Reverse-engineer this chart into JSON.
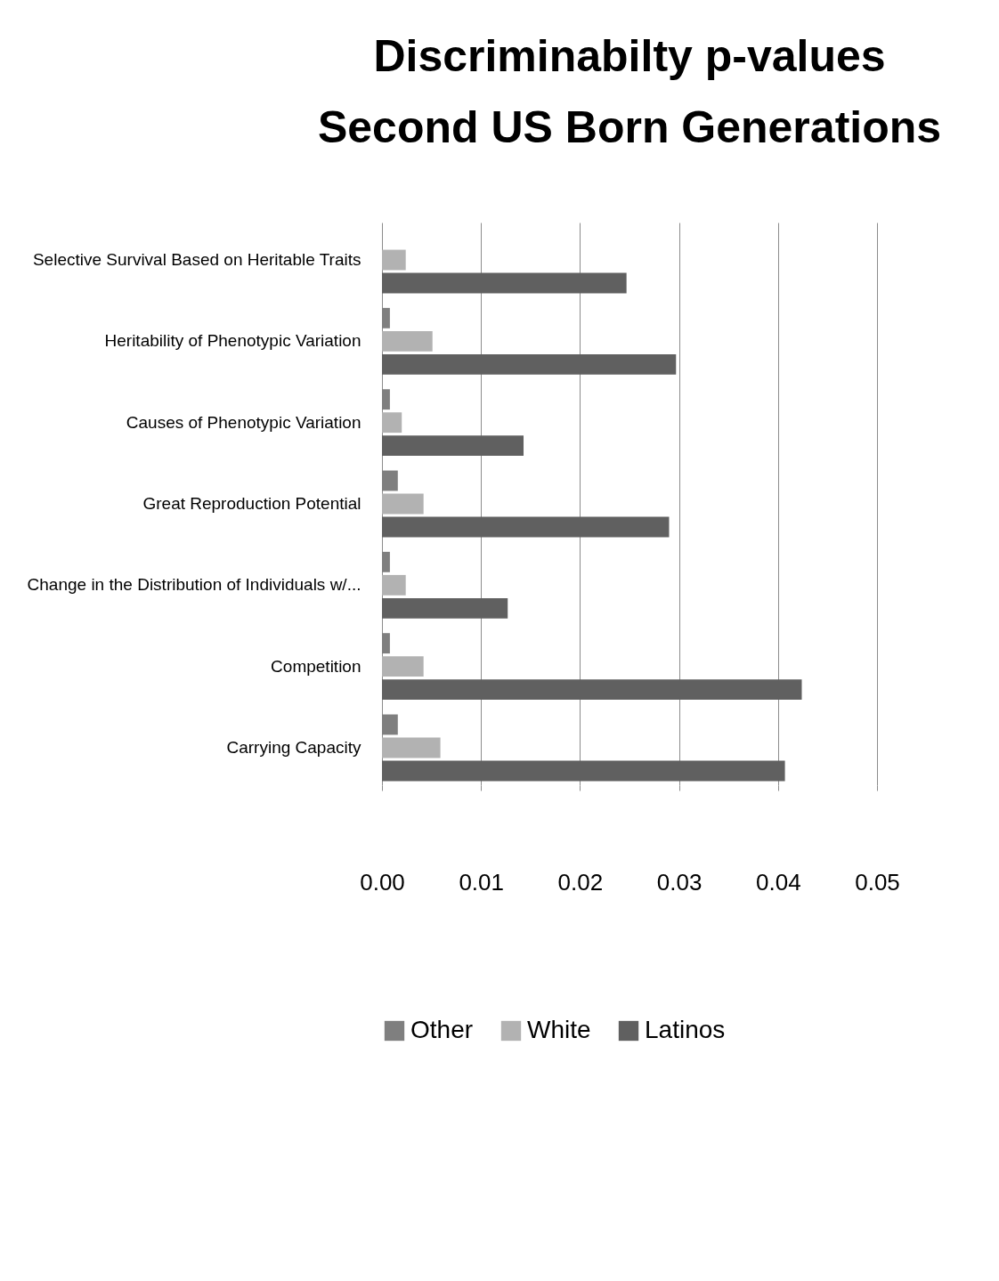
{
  "chart_data": {
    "type": "bar",
    "orientation": "horizontal",
    "title": "Discriminabilty p-values\nSecond US Born Generations",
    "categories": [
      "Selective Survival Based on Heritable Traits",
      "Heritability of Phenotypic Variation",
      "Causes of Phenotypic Variation",
      "Great Reproduction Potential",
      "Change in the Distribution of Individuals w/...",
      "Competition",
      "Carrying Capacity"
    ],
    "series": [
      {
        "name": "Other",
        "color": "#7f7f7f",
        "values": [
          null,
          0.0008,
          0.0008,
          0.0016,
          0.0008,
          0.0008,
          0.0016
        ]
      },
      {
        "name": "White",
        "color": "#b2b2b2",
        "values": [
          0.0024,
          0.0051,
          0.002,
          0.0042,
          0.0024,
          0.0042,
          0.0059
        ]
      },
      {
        "name": "Latinos",
        "color": "#606060",
        "values": [
          0.0247,
          0.0297,
          0.0143,
          0.029,
          0.0127,
          0.0424,
          0.0407
        ]
      }
    ],
    "xlim": [
      0,
      0.05
    ],
    "xticks": [
      {
        "value": 0,
        "label": "0.00"
      },
      {
        "value": 0.01,
        "label": "0.01"
      },
      {
        "value": 0.02,
        "label": "0.02"
      },
      {
        "value": 0.03,
        "label": "0.03"
      },
      {
        "value": 0.04,
        "label": "0.04"
      },
      {
        "value": 0.05,
        "label": "0.05"
      }
    ],
    "grid": "x",
    "legend": "bottom"
  }
}
